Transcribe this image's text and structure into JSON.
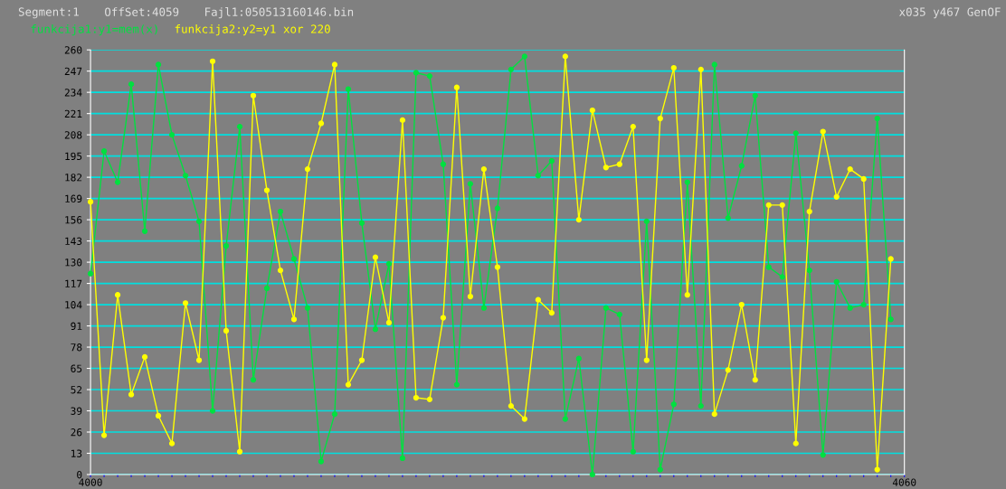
{
  "chart_data": {
    "type": "line",
    "annotations": [
      "Segment:1",
      "OffSet:4059",
      "Fajl1:050513160146.bin",
      "x035 y467 GenOF"
    ],
    "x": [
      4000,
      4001,
      4002,
      4003,
      4004,
      4005,
      4006,
      4007,
      4008,
      4009,
      4010,
      4011,
      4012,
      4013,
      4014,
      4015,
      4016,
      4017,
      4018,
      4019,
      4020,
      4021,
      4022,
      4023,
      4024,
      4025,
      4026,
      4027,
      4028,
      4029,
      4030,
      4031,
      4032,
      4033,
      4034,
      4035,
      4036,
      4037,
      4038,
      4039,
      4040,
      4041,
      4042,
      4043,
      4044,
      4045,
      4046,
      4047,
      4048,
      4049,
      4050,
      4051,
      4052,
      4053,
      4054,
      4055,
      4056,
      4057,
      4058,
      4059
    ],
    "series": [
      {
        "name": "funkcija1:y1=mem(x)",
        "color": "#00e040",
        "values": [
          123,
          198,
          179,
          239,
          149,
          251,
          208,
          183,
          155,
          39,
          140,
          213,
          58,
          114,
          161,
          132,
          102,
          8,
          37,
          236,
          154,
          89,
          129,
          10,
          246,
          244,
          190,
          55,
          178,
          102,
          163,
          248,
          256,
          183,
          192,
          34,
          71,
          0,
          102,
          98,
          14,
          155,
          3,
          43,
          179,
          42,
          251,
          157,
          189,
          232,
          127,
          121,
          209,
          125,
          12,
          118,
          102,
          104,
          218,
          95
        ]
      },
      {
        "name": "funkcija2:y2=y1 xor 220",
        "color": "#ffff00",
        "values": [
          167,
          24,
          110,
          49,
          72,
          36,
          19,
          105,
          70,
          253,
          88,
          14,
          232,
          174,
          125,
          95,
          187,
          215,
          251,
          55,
          70,
          133,
          93,
          217,
          47,
          46,
          96,
          237,
          109,
          187,
          127,
          42,
          34,
          107,
          99,
          256,
          156,
          223,
          188,
          190,
          213,
          70,
          218,
          249,
          110,
          248,
          37,
          64,
          104,
          58,
          165,
          165,
          19,
          161,
          210,
          170,
          187,
          181,
          3,
          132
        ]
      }
    ],
    "xlim": [
      4000,
      4060
    ],
    "xticks": [
      4000,
      {
        "value": 4001,
        "label": null
      },
      {
        "value": 4002,
        "label": null
      },
      {
        "value": 4003,
        "label": null
      },
      {
        "value": 4004,
        "label": null
      },
      {
        "value": 4005,
        "label": null
      },
      {
        "value": 4006,
        "label": null
      },
      {
        "value": 4007,
        "label": null
      },
      {
        "value": 4008,
        "label": null
      },
      {
        "value": 4009,
        "label": null
      },
      {
        "value": 4010,
        "label": null
      },
      {
        "value": 4011,
        "label": null
      },
      {
        "value": 4012,
        "label": null
      },
      {
        "value": 4013,
        "label": null
      },
      {
        "value": 4014,
        "label": null
      },
      {
        "value": 4015,
        "label": null
      },
      {
        "value": 4016,
        "label": null
      },
      {
        "value": 4017,
        "label": null
      },
      {
        "value": 4018,
        "label": null
      },
      {
        "value": 4019,
        "label": null
      },
      {
        "value": 4020,
        "label": null
      },
      {
        "value": 4021,
        "label": null
      },
      {
        "value": 4022,
        "label": null
      },
      {
        "value": 4023,
        "label": null
      },
      {
        "value": 4024,
        "label": null
      },
      {
        "value": 4025,
        "label": null
      },
      {
        "value": 4026,
        "label": null
      },
      {
        "value": 4027,
        "label": null
      },
      {
        "value": 4028,
        "label": null
      },
      {
        "value": 4029,
        "label": null
      },
      {
        "value": 4030,
        "label": null
      },
      {
        "value": 4031,
        "label": null
      },
      {
        "value": 4032,
        "label": null
      },
      {
        "value": 4033,
        "label": null
      },
      {
        "value": 4034,
        "label": null
      },
      {
        "value": 4035,
        "label": null
      },
      {
        "value": 4036,
        "label": null
      },
      {
        "value": 4037,
        "label": null
      },
      {
        "value": 4038,
        "label": null
      },
      {
        "value": 4039,
        "label": null
      },
      {
        "value": 4040,
        "label": null
      },
      {
        "value": 4041,
        "label": null
      },
      {
        "value": 4042,
        "label": null
      },
      {
        "value": 4043,
        "label": null
      },
      {
        "value": 4044,
        "label": null
      },
      {
        "value": 4045,
        "label": null
      },
      {
        "value": 4046,
        "label": null
      },
      {
        "value": 4047,
        "label": null
      },
      {
        "value": 4048,
        "label": null
      },
      {
        "value": 4049,
        "label": null
      },
      {
        "value": 4050,
        "label": null
      },
      {
        "value": 4051,
        "label": null
      },
      {
        "value": 4052,
        "label": null
      },
      {
        "value": 4053,
        "label": null
      },
      {
        "value": 4054,
        "label": null
      },
      {
        "value": 4055,
        "label": null
      },
      {
        "value": 4056,
        "label": null
      },
      {
        "value": 4057,
        "label": null
      },
      {
        "value": 4058,
        "label": null
      },
      {
        "value": 4059,
        "label": null
      },
      4060
    ],
    "ylim": [
      0,
      260
    ],
    "yticks": [
      0,
      13,
      26,
      39,
      52,
      65,
      78,
      91,
      104,
      117,
      130,
      143,
      156,
      169,
      182,
      195,
      208,
      221,
      234,
      247,
      260
    ],
    "grid": "y",
    "legend": "top left",
    "marker": "circle",
    "line_style": "solid"
  }
}
